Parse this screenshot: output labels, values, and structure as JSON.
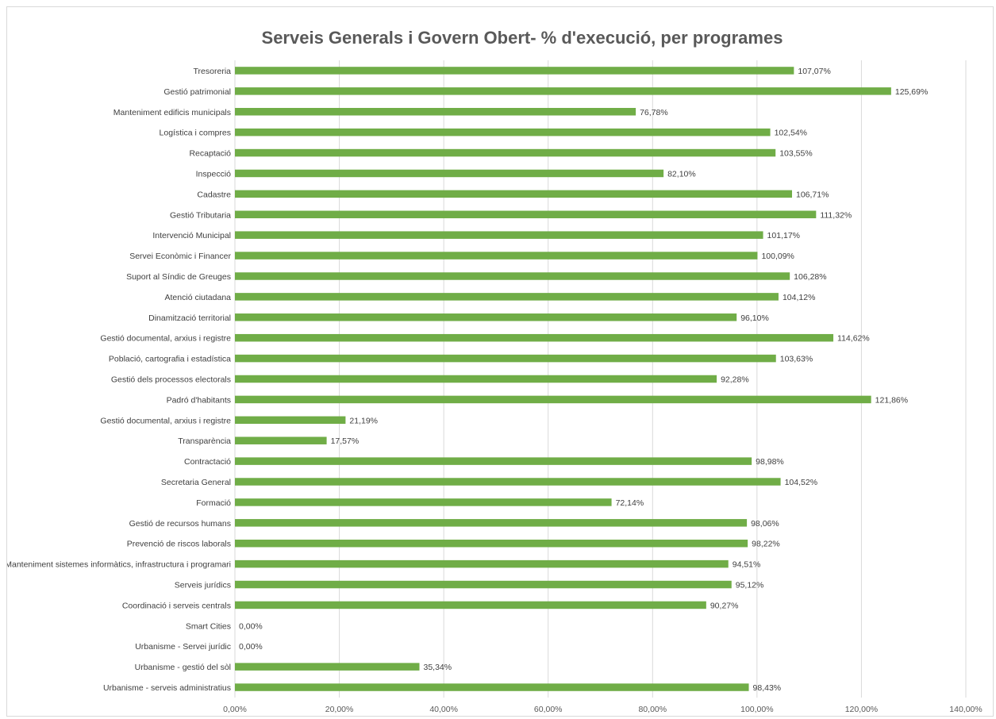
{
  "chart_data": {
    "type": "bar",
    "orientation": "horizontal",
    "title": "Serveis Generals i Govern Obert-  % d'execució, per programes",
    "categories": [
      "Tresoreria",
      "Gestió patrimonial",
      "Manteniment edificis municipals",
      "Logística i compres",
      "Recaptació",
      "Inspecció",
      "Cadastre",
      "Gestió Tributaria",
      "Intervenció Municipal",
      "Servei Econòmic i Financer",
      "Suport al Síndic de Greuges",
      "Atenció ciutadana",
      "Dinamització territorial",
      "Gestió documental, arxius i registre",
      "Població, cartografia i estadística",
      "Gestió dels processos electorals",
      "Padró d'habitants",
      "Gestió documental, arxius i registre",
      "Transparència",
      "Contractació",
      "Secretaria General",
      "Formació",
      "Gestió de recursos humans",
      "Prevenció de riscos laborals",
      "Manteniment sistemes informàtics, infrastructura i programari",
      "Serveis jurídics",
      "Coordinació i serveis centrals",
      "Smart Cities",
      "Urbanisme - Servei jurídic",
      "Urbanisme - gestió del sòl",
      "Urbanisme - serveis administratius"
    ],
    "values": [
      107.07,
      125.69,
      76.78,
      102.54,
      103.55,
      82.1,
      106.71,
      111.32,
      101.17,
      100.09,
      106.28,
      104.12,
      96.1,
      114.62,
      103.63,
      92.28,
      121.86,
      21.19,
      17.57,
      98.98,
      104.52,
      72.14,
      98.06,
      98.22,
      94.51,
      95.12,
      90.27,
      0.0,
      0.0,
      35.34,
      98.43
    ],
    "value_labels": [
      "107,07%",
      "125,69%",
      "76,78%",
      "102,54%",
      "103,55%",
      "82,10%",
      "106,71%",
      "111,32%",
      "101,17%",
      "100,09%",
      "106,28%",
      "104,12%",
      "96,10%",
      "114,62%",
      "103,63%",
      "92,28%",
      "121,86%",
      "21,19%",
      "17,57%",
      "98,98%",
      "104,52%",
      "72,14%",
      "98,06%",
      "98,22%",
      "94,51%",
      "95,12%",
      "90,27%",
      "0,00%",
      "0,00%",
      "35,34%",
      "98,43%"
    ],
    "xlim": [
      0,
      140
    ],
    "xticks": [
      0,
      20,
      40,
      60,
      80,
      100,
      120,
      140
    ],
    "xtick_labels": [
      "0,00%",
      "20,00%",
      "40,00%",
      "60,00%",
      "80,00%",
      "100,00%",
      "120,00%",
      "140,00%"
    ],
    "xlabel": "",
    "ylabel": "",
    "grid": true,
    "legend": "none",
    "bar_color": "#70ad47"
  }
}
